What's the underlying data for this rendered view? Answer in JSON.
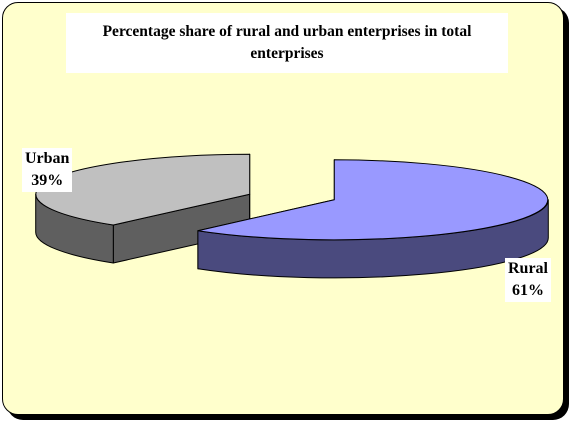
{
  "chart_data": {
    "type": "pie",
    "title": "Percentage share of rural and urban enterprises in total enterprises",
    "categories": [
      "Rural",
      "Urban"
    ],
    "values": [
      61,
      39
    ],
    "value_labels": [
      "61%",
      "39%"
    ],
    "three_d": true,
    "exploded": true,
    "legend": "none",
    "colors": {
      "Rural": "#9999ff",
      "Rural_side": "#4a4a7e",
      "Urban": "#c0c0c0",
      "Urban_side": "#5f5f5f",
      "background": "#ffffcc"
    }
  }
}
